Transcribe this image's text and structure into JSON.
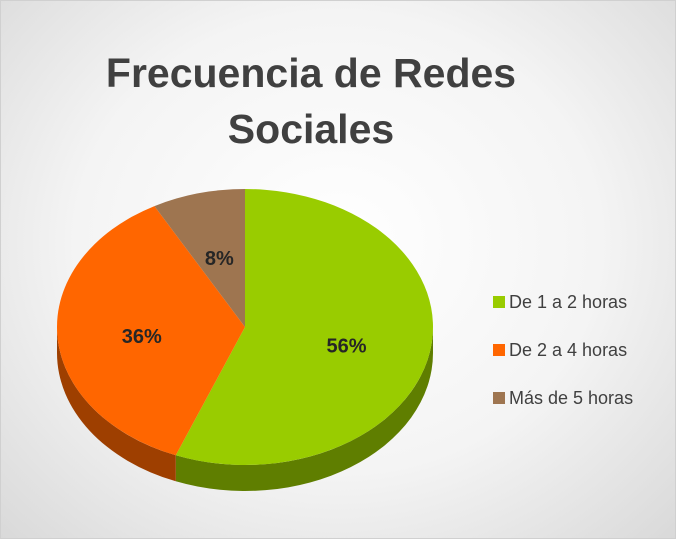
{
  "chart_data": {
    "type": "pie",
    "title": "Frecuencia de Redes Sociales",
    "categories": [
      "De 1 a 2 horas",
      "De 2 a 4 horas",
      "Más de 5 horas"
    ],
    "values": [
      56,
      36,
      8
    ],
    "value_labels": [
      "56%",
      "36%",
      "8%"
    ],
    "colors": [
      "#99cc00",
      "#ff6600",
      "#9e7550"
    ],
    "legend": "right"
  }
}
